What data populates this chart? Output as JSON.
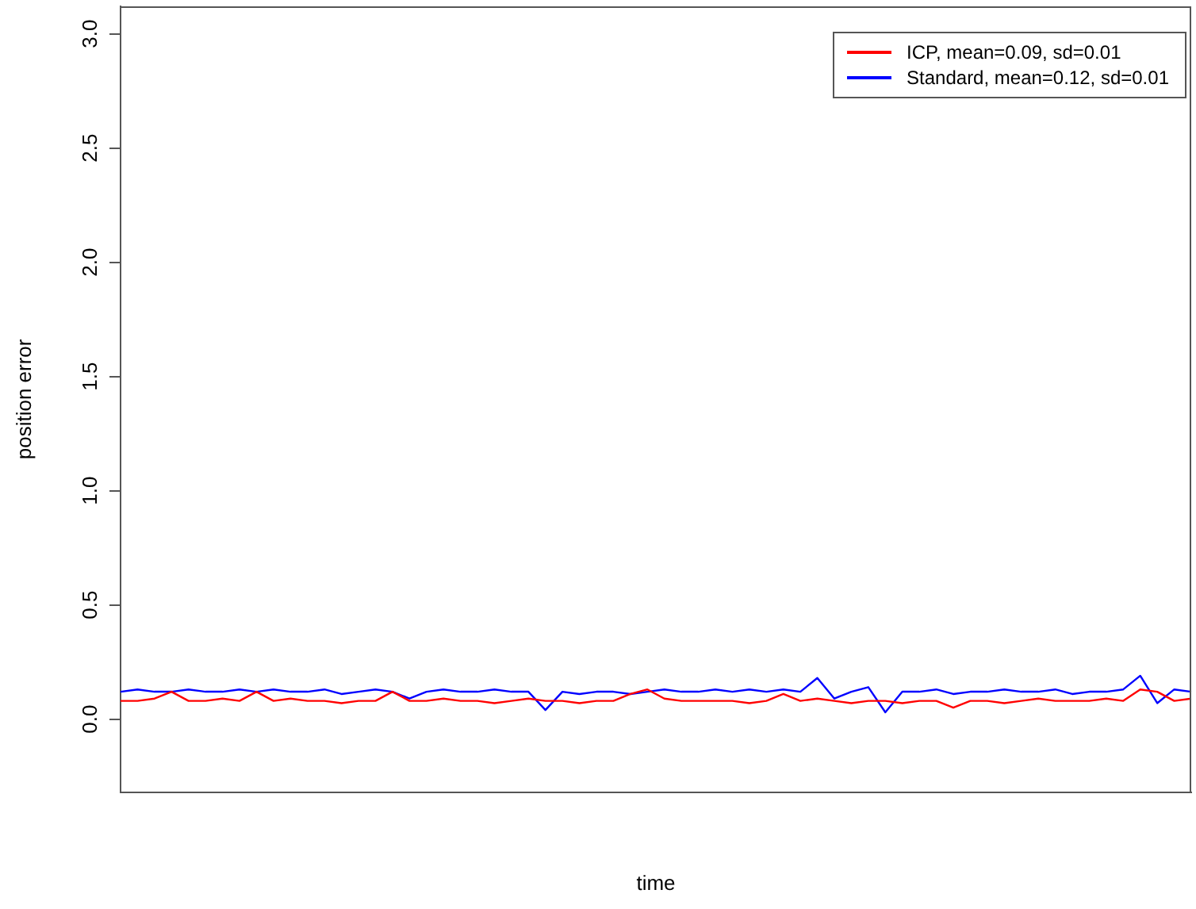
{
  "chart_data": {
    "type": "line",
    "xlabel": "time",
    "ylabel": "position error",
    "categories": [
      null,
      null,
      null,
      null,
      null,
      null,
      null,
      null,
      null,
      null,
      null,
      null,
      null,
      null,
      null,
      null,
      null,
      null,
      null,
      null,
      null,
      null,
      null,
      null,
      null,
      null,
      null,
      null,
      null,
      null,
      null,
      null,
      null,
      null,
      null,
      null,
      null,
      null,
      null,
      null,
      null,
      null,
      null,
      null,
      null,
      null,
      null,
      null,
      null,
      null,
      null,
      null,
      null,
      null,
      null,
      null,
      null,
      null,
      null,
      null,
      null,
      null,
      null,
      null
    ],
    "series": [
      {
        "name": "ICP, mean=0.09, sd=0.01",
        "color": "#ff0000",
        "values": [
          0.08,
          0.08,
          0.09,
          0.12,
          0.08,
          0.08,
          0.09,
          0.08,
          0.12,
          0.08,
          0.09,
          0.08,
          0.08,
          0.07,
          0.08,
          0.08,
          0.12,
          0.08,
          0.08,
          0.09,
          0.08,
          0.08,
          0.07,
          0.08,
          0.09,
          0.08,
          0.08,
          0.07,
          0.08,
          0.08,
          0.11,
          0.13,
          0.09,
          0.08,
          0.08,
          0.08,
          0.08,
          0.07,
          0.08,
          0.11,
          0.08,
          0.09,
          0.08,
          0.07,
          0.08,
          0.08,
          0.07,
          0.08,
          0.08,
          0.05,
          0.08,
          0.08,
          0.07,
          0.08,
          0.09,
          0.08,
          0.08,
          0.08,
          0.09,
          0.08,
          0.13,
          0.12,
          0.08,
          0.09
        ]
      },
      {
        "name": "Standard, mean=0.12, sd=0.01",
        "color": "#0000ff",
        "values": [
          0.12,
          0.13,
          0.12,
          0.12,
          0.13,
          0.12,
          0.12,
          0.13,
          0.12,
          0.13,
          0.12,
          0.12,
          0.13,
          0.11,
          0.12,
          0.13,
          0.12,
          0.09,
          0.12,
          0.13,
          0.12,
          0.12,
          0.13,
          0.12,
          0.12,
          0.04,
          0.12,
          0.11,
          0.12,
          0.12,
          0.11,
          0.12,
          0.13,
          0.12,
          0.12,
          0.13,
          0.12,
          0.13,
          0.12,
          0.13,
          0.12,
          0.18,
          0.09,
          0.12,
          0.14,
          0.03,
          0.12,
          0.12,
          0.13,
          0.11,
          0.12,
          0.12,
          0.13,
          0.12,
          0.12,
          0.13,
          0.11,
          0.12,
          0.12,
          0.13,
          0.19,
          0.07,
          0.13,
          0.12
        ]
      }
    ],
    "ylim": [
      -0.32,
      3.12
    ],
    "yticks": [
      {
        "value": 0,
        "label": "0.0"
      },
      0.5,
      {
        "value": 1,
        "label": "1.0"
      },
      1.5,
      {
        "value": 2,
        "label": "2.0"
      },
      2.5,
      {
        "value": 3,
        "label": "3.0"
      }
    ],
    "tick_labels": "y",
    "grid": false,
    "legend": "top right",
    "marker": "none",
    "line_style": "solid"
  }
}
